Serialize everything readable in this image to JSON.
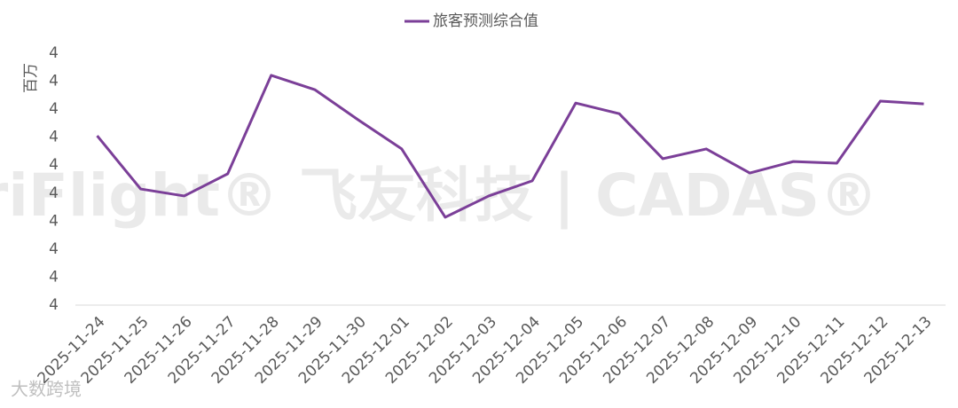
{
  "chart_data": {
    "type": "line",
    "y_axis_label": "百万",
    "categories": [
      "2025-11-24",
      "2025-11-25",
      "2025-11-26",
      "2025-11-27",
      "2025-11-28",
      "2025-11-29",
      "2025-11-30",
      "2025-12-01",
      "2025-12-02",
      "2025-12-03",
      "2025-12-04",
      "2025-12-05",
      "2025-12-06",
      "2025-12-07",
      "2025-12-08",
      "2025-12-09",
      "2025-12-10",
      "2025-12-11",
      "2025-12-12",
      "2025-12-13"
    ],
    "series": [
      {
        "name": "旅客预测综合值",
        "color": "#7b3f98",
        "values": [
          4.155,
          3.965,
          3.94,
          4.019,
          4.371,
          4.32,
          4.212,
          4.108,
          3.864,
          3.94,
          3.994,
          4.272,
          4.234,
          4.073,
          4.108,
          4.022,
          4.063,
          4.057,
          4.279,
          4.269
        ]
      }
    ],
    "ylim": [
      3.55,
      4.45
    ],
    "yticks": [
      {
        "value": 3.55,
        "label": "4"
      },
      {
        "value": 3.65,
        "label": "4"
      },
      {
        "value": 3.75,
        "label": "4"
      },
      {
        "value": 3.85,
        "label": "4"
      },
      {
        "value": 3.95,
        "label": "4"
      },
      {
        "value": 4.05,
        "label": "4"
      },
      {
        "value": 4.15,
        "label": "4"
      },
      {
        "value": 4.25,
        "label": "4"
      },
      {
        "value": 4.35,
        "label": "4"
      },
      {
        "value": 4.45,
        "label": "4"
      }
    ],
    "grid": false,
    "legend": "top",
    "watermark": "VariFlight® 飞友科技 | CADAS®",
    "logo": "大数跨境"
  }
}
